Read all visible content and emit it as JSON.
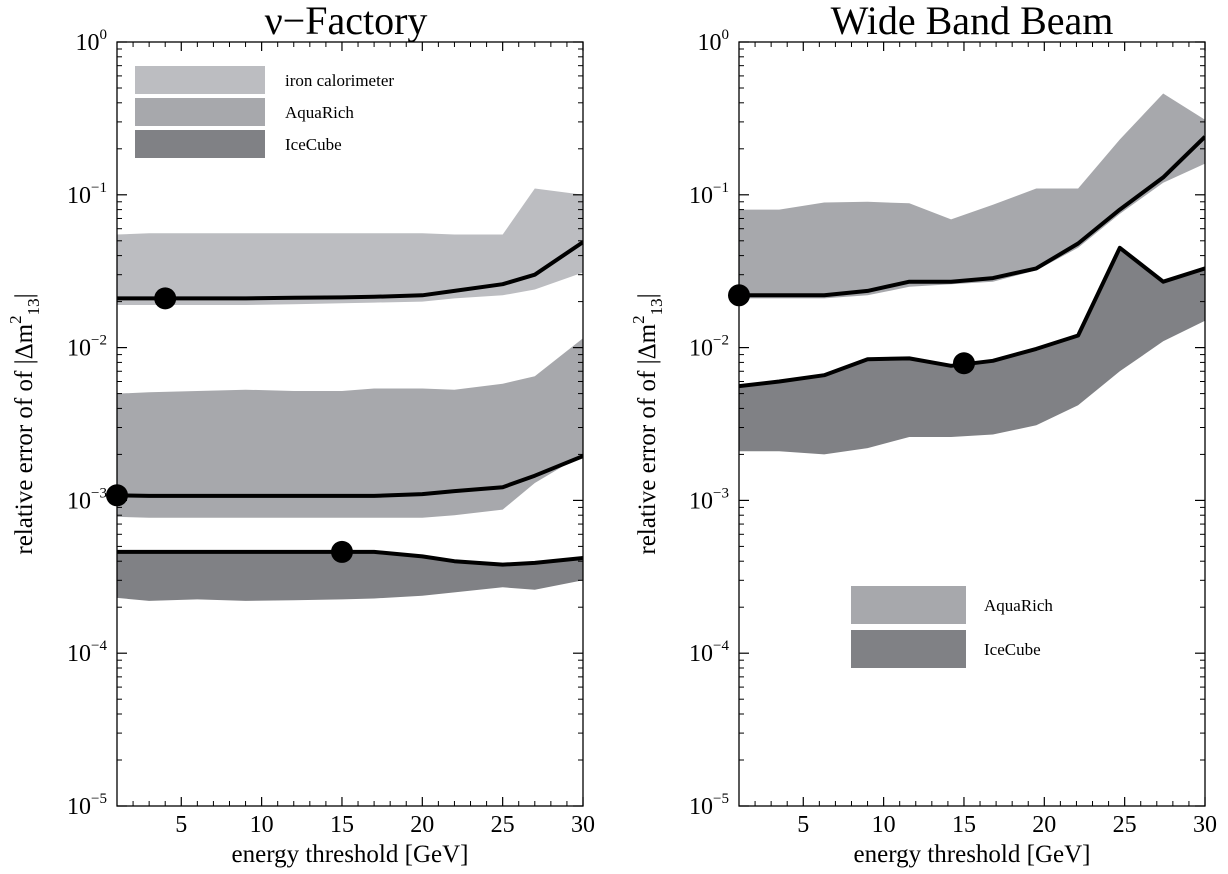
{
  "chart_data": [
    {
      "type": "area",
      "title": "ν−Factory",
      "xlabel": "energy threshold [GeV]",
      "ylabel": "relative error of of |Δm²₁₃|",
      "ylabel_parts": {
        "prefix": "relative error of of |Δm",
        "sup": "2",
        "sub": "13",
        "suffix": "|"
      },
      "x_scale": "linear",
      "y_scale": "log",
      "xlim": [
        1,
        30
      ],
      "ylim": [
        1e-05,
        1
      ],
      "xticks": [
        5,
        10,
        15,
        20,
        25,
        30
      ],
      "xtick_labels": [
        "5",
        "10",
        "15",
        "20",
        "25",
        "30"
      ],
      "yticks": [
        {
          "value": 1e-05,
          "base": "10",
          "exp": "−5"
        },
        {
          "value": 0.0001,
          "base": "10",
          "exp": "−4"
        },
        {
          "value": 0.001,
          "base": "10",
          "exp": "−3"
        },
        {
          "value": 0.01,
          "base": "10",
          "exp": "−2"
        },
        {
          "value": 0.1,
          "base": "10",
          "exp": "−1"
        },
        {
          "value": 1,
          "base": "10",
          "exp": "0"
        }
      ],
      "grid": false,
      "legend_position": "top-left",
      "bands": [
        {
          "name": "iron calorimeter",
          "color": "#bcbdc1",
          "x": [
            1,
            3,
            6,
            9,
            12,
            15,
            17,
            20,
            22,
            25,
            27,
            30
          ],
          "upper": [
            0.055,
            0.056,
            0.056,
            0.056,
            0.056,
            0.056,
            0.056,
            0.056,
            0.055,
            0.055,
            0.11,
            0.1
          ],
          "lower": [
            0.019,
            0.019,
            0.019,
            0.019,
            0.0192,
            0.0195,
            0.0197,
            0.02,
            0.021,
            0.022,
            0.024,
            0.031
          ],
          "central": [
            0.021,
            0.021,
            0.021,
            0.021,
            0.0212,
            0.0213,
            0.0215,
            0.022,
            0.0235,
            0.026,
            0.03,
            0.049
          ],
          "marker": {
            "x": 4,
            "y": 0.021
          }
        },
        {
          "name": "AquaRich",
          "color": "#a7a8ac",
          "x": [
            1,
            3,
            6,
            9,
            12,
            15,
            17,
            20,
            22,
            25,
            27,
            30
          ],
          "upper": [
            0.005,
            0.0051,
            0.0052,
            0.0053,
            0.0052,
            0.0052,
            0.0054,
            0.0054,
            0.0053,
            0.0058,
            0.0065,
            0.0115
          ],
          "lower": [
            0.00078,
            0.00077,
            0.00077,
            0.00077,
            0.00077,
            0.00077,
            0.00077,
            0.00077,
            0.0008,
            0.00087,
            0.0013,
            0.002
          ],
          "central": [
            0.00108,
            0.00107,
            0.00107,
            0.00107,
            0.00107,
            0.00107,
            0.00107,
            0.0011,
            0.00115,
            0.00122,
            0.00145,
            0.00195
          ],
          "marker": {
            "x": 1,
            "y": 0.00108
          }
        },
        {
          "name": "IceCube",
          "color": "#808185",
          "x": [
            1,
            3,
            6,
            9,
            12,
            15,
            17,
            20,
            22,
            25,
            27,
            30
          ],
          "upper": [
            0.00046,
            0.00046,
            0.00046,
            0.00046,
            0.00046,
            0.00046,
            0.00046,
            0.00043,
            0.0004,
            0.00038,
            0.00039,
            0.00042
          ],
          "lower": [
            0.00023,
            0.00022,
            0.000225,
            0.00022,
            0.000222,
            0.000225,
            0.000228,
            0.000238,
            0.00025,
            0.00027,
            0.00026,
            0.0003
          ],
          "central": [
            0.00046,
            0.00046,
            0.00046,
            0.00046,
            0.00046,
            0.00046,
            0.00046,
            0.00043,
            0.0004,
            0.00038,
            0.00039,
            0.00042
          ],
          "marker": {
            "x": 15,
            "y": 0.00046
          }
        }
      ]
    },
    {
      "type": "area",
      "title": "Wide Band Beam",
      "xlabel": "energy threshold [GeV]",
      "ylabel": "relative error of of |Δm²₁₃|",
      "ylabel_parts": {
        "prefix": "relative error of of |Δm",
        "sup": "2",
        "sub": "13",
        "suffix": "|"
      },
      "x_scale": "linear",
      "y_scale": "log",
      "xlim": [
        1,
        30
      ],
      "ylim": [
        1e-05,
        1
      ],
      "xticks": [
        5,
        10,
        15,
        20,
        25,
        30
      ],
      "xtick_labels": [
        "5",
        "10",
        "15",
        "20",
        "25",
        "30"
      ],
      "yticks": [
        {
          "value": 1e-05,
          "base": "10",
          "exp": "−5"
        },
        {
          "value": 0.0001,
          "base": "10",
          "exp": "−4"
        },
        {
          "value": 0.001,
          "base": "10",
          "exp": "−3"
        },
        {
          "value": 0.01,
          "base": "10",
          "exp": "−2"
        },
        {
          "value": 0.1,
          "base": "10",
          "exp": "−1"
        },
        {
          "value": 1,
          "base": "10",
          "exp": "0"
        }
      ],
      "grid": false,
      "legend_position": "bottom-center",
      "bands": [
        {
          "name": "AquaRich",
          "color": "#a7a8ac",
          "x": [
            1,
            3.5,
            6.3,
            9,
            11.6,
            14.2,
            16.8,
            19.5,
            22.1,
            24.7,
            27.4,
            30
          ],
          "upper": [
            0.08,
            0.08,
            0.089,
            0.09,
            0.088,
            0.069,
            0.086,
            0.11,
            0.11,
            0.23,
            0.46,
            0.31
          ],
          "lower": [
            0.021,
            0.021,
            0.021,
            0.022,
            0.025,
            0.026,
            0.027,
            0.032,
            0.045,
            0.075,
            0.12,
            0.16
          ],
          "central": [
            0.022,
            0.022,
            0.022,
            0.0235,
            0.027,
            0.027,
            0.0285,
            0.033,
            0.048,
            0.08,
            0.13,
            0.24
          ],
          "marker": {
            "x": 1,
            "y": 0.022
          }
        },
        {
          "name": "IceCube",
          "color": "#808185",
          "x": [
            1,
            3.5,
            6.3,
            9,
            11.6,
            14.2,
            16.8,
            19.5,
            22.1,
            24.7,
            27.4,
            30
          ],
          "upper": [
            0.0056,
            0.006,
            0.0066,
            0.0084,
            0.0085,
            0.0076,
            0.0082,
            0.0098,
            0.012,
            0.045,
            0.027,
            0.033
          ],
          "lower": [
            0.0021,
            0.0021,
            0.002,
            0.0022,
            0.0026,
            0.0026,
            0.0027,
            0.0031,
            0.0042,
            0.007,
            0.011,
            0.015
          ],
          "central": [
            0.0056,
            0.006,
            0.0066,
            0.0084,
            0.0085,
            0.0076,
            0.0082,
            0.0098,
            0.012,
            0.045,
            0.027,
            0.033
          ],
          "marker": {
            "x": 15,
            "y": 0.0079
          }
        }
      ]
    }
  ]
}
